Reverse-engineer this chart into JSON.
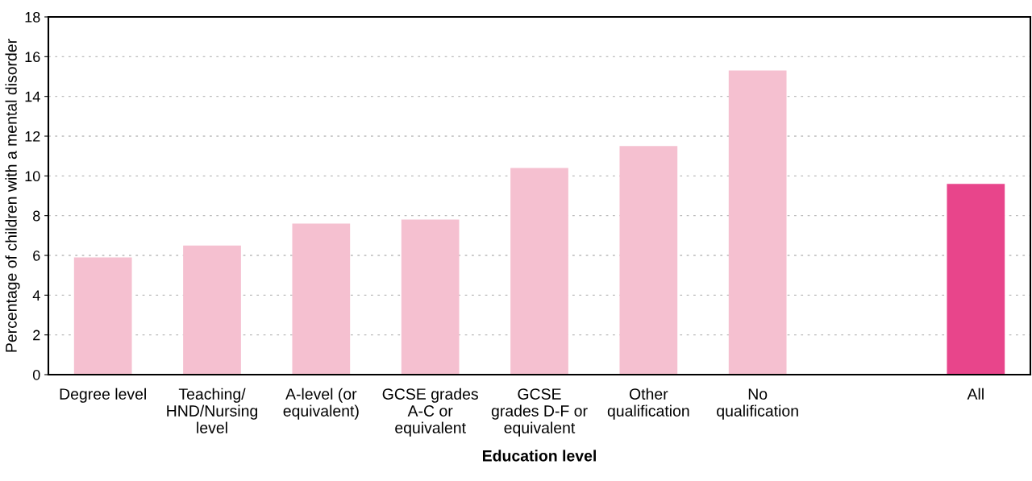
{
  "chart_data": {
    "type": "bar",
    "categories": [
      "Degree level",
      "Teaching/\nHND/Nursing\nlevel",
      "A-level (or\nequivalent)",
      "GCSE grades\nA-C or\nequivalent",
      "GCSE\ngrades D-F or\nequivalent",
      "Other\nqualification",
      "No\nqualification",
      null,
      "All"
    ],
    "values": [
      5.9,
      6.5,
      7.6,
      7.8,
      10.4,
      11.5,
      15.3,
      null,
      9.6
    ],
    "colors": [
      "#f5c0d0",
      "#f5c0d0",
      "#f5c0d0",
      "#f5c0d0",
      "#f5c0d0",
      "#f5c0d0",
      "#f5c0d0",
      "#f5c0d0",
      "#e8458b"
    ],
    "xlabel": "Education level",
    "ylabel": "Percentage of children with a mental disorder",
    "ylim": [
      0,
      18
    ],
    "yticks": [
      0,
      2,
      4,
      6,
      8,
      10,
      12,
      14,
      16,
      18
    ],
    "grid": "y"
  }
}
